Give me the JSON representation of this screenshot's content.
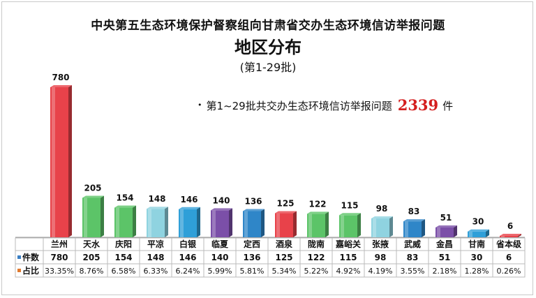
{
  "header": {
    "line1": "中央第五生态环境保护督察组向甘肃省交办生态环境信访举报问题",
    "line2": "地区分布",
    "line3": "(第1-29批)"
  },
  "summary": {
    "text": "第1~29批共交办生态环境信访举报问题",
    "total": "2339",
    "unit": "件"
  },
  "table": {
    "row1_label": "件数",
    "row2_label": "占比",
    "row1_marker_color": "#3a7fc4",
    "row2_marker_color": "#e07a2f"
  },
  "chart_data": {
    "type": "bar",
    "categories": [
      "兰州",
      "天水",
      "庆阳",
      "平凉",
      "白银",
      "临夏",
      "定西",
      "酒泉",
      "陇南",
      "嘉峪关",
      "张掖",
      "武威",
      "金昌",
      "甘南",
      "省本级"
    ],
    "values": [
      780,
      205,
      154,
      148,
      146,
      140,
      136,
      125,
      122,
      115,
      98,
      83,
      51,
      30,
      6
    ],
    "value_labels": [
      "780",
      "205",
      "154",
      "148",
      "146",
      "140",
      "136",
      "125",
      "122",
      "115",
      "98",
      "83",
      "51",
      "30",
      "6"
    ],
    "percent_labels": [
      "33.35%",
      "8.76%",
      "6.58%",
      "6.33%",
      "6.24%",
      "5.99%",
      "5.81%",
      "5.34%",
      "5.22%",
      "4.92%",
      "4.19%",
      "3.55%",
      "2.18%",
      "1.28%",
      "0.26%"
    ],
    "colors": [
      "#e8424a",
      "#5cc468",
      "#5cc468",
      "#8fd3e0",
      "#2f9fd8",
      "#7b4fa8",
      "#2f86c8",
      "#e8424a",
      "#5cc468",
      "#5cc468",
      "#8fd3e0",
      "#2f86c8",
      "#7b4fa8",
      "#2f9fd8",
      "#e8424a"
    ],
    "title": "",
    "xlabel": "",
    "ylabel": "",
    "ylim": [
      0,
      780
    ],
    "grid": false,
    "legend": "none"
  }
}
